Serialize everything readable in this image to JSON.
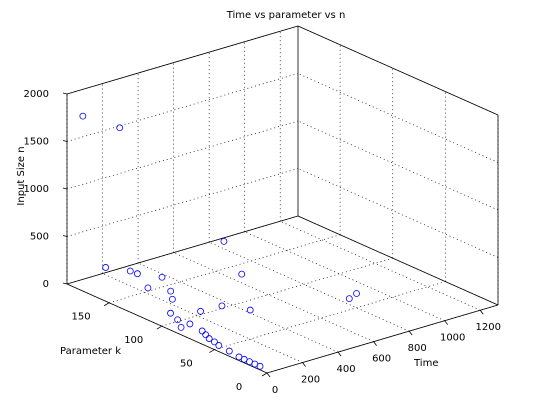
{
  "chart_data": {
    "type": "scatter",
    "subtype": "3d",
    "title": "Time vs parameter vs n",
    "xlabel": "Time",
    "ylabel": "Parameter k",
    "zlabel": "Input Size n",
    "xlim": [
      0,
      1300
    ],
    "ylim": [
      0,
      190
    ],
    "zlim": [
      0,
      2000
    ],
    "xticks": [
      "0",
      "200",
      "400",
      "600",
      "800",
      "1000",
      "1200"
    ],
    "yticks": [
      "0",
      "50",
      "100",
      "150"
    ],
    "zticks": [
      "0",
      "500",
      "1000",
      "1500",
      "2000"
    ],
    "grid": true,
    "box": true,
    "marker": "circle",
    "marker_color": "#0000ff",
    "points": [
      {
        "x": 20,
        "y": 10,
        "z": 10
      },
      {
        "x": 20,
        "y": 15,
        "z": 10
      },
      {
        "x": 20,
        "y": 20,
        "z": 10
      },
      {
        "x": 20,
        "y": 25,
        "z": 10
      },
      {
        "x": 20,
        "y": 30,
        "z": 10
      },
      {
        "x": 25,
        "y": 40,
        "z": 20
      },
      {
        "x": 25,
        "y": 50,
        "z": 30
      },
      {
        "x": 30,
        "y": 55,
        "z": 40
      },
      {
        "x": 30,
        "y": 60,
        "z": 50
      },
      {
        "x": 40,
        "y": 65,
        "z": 60
      },
      {
        "x": 50,
        "y": 70,
        "z": 70
      },
      {
        "x": 40,
        "y": 80,
        "z": 100
      },
      {
        "x": 20,
        "y": 85,
        "z": 50
      },
      {
        "x": 30,
        "y": 90,
        "z": 100
      },
      {
        "x": 20,
        "y": 95,
        "z": 150
      },
      {
        "x": 100,
        "y": 80,
        "z": 200
      },
      {
        "x": 60,
        "y": 100,
        "z": 250
      },
      {
        "x": 80,
        "y": 105,
        "z": 300
      },
      {
        "x": 120,
        "y": 120,
        "z": 350
      },
      {
        "x": 100,
        "y": 140,
        "z": 300
      },
      {
        "x": 250,
        "y": 85,
        "z": 150
      },
      {
        "x": 350,
        "y": 75,
        "z": 100
      },
      {
        "x": 450,
        "y": 100,
        "z": 300
      },
      {
        "x": 60,
        "y": 140,
        "z": 350
      },
      {
        "x": 40,
        "y": 160,
        "z": 300
      },
      {
        "x": 100,
        "y": 130,
        "z": 200
      },
      {
        "x": 700,
        "y": 40,
        "z": 200
      },
      {
        "x": 800,
        "y": 50,
        "z": 150
      },
      {
        "x": 350,
        "y": 100,
        "z": 700
      },
      {
        "x": 30,
        "y": 145,
        "z": 1850
      },
      {
        "x": 30,
        "y": 180,
        "z": 1800
      }
    ]
  }
}
